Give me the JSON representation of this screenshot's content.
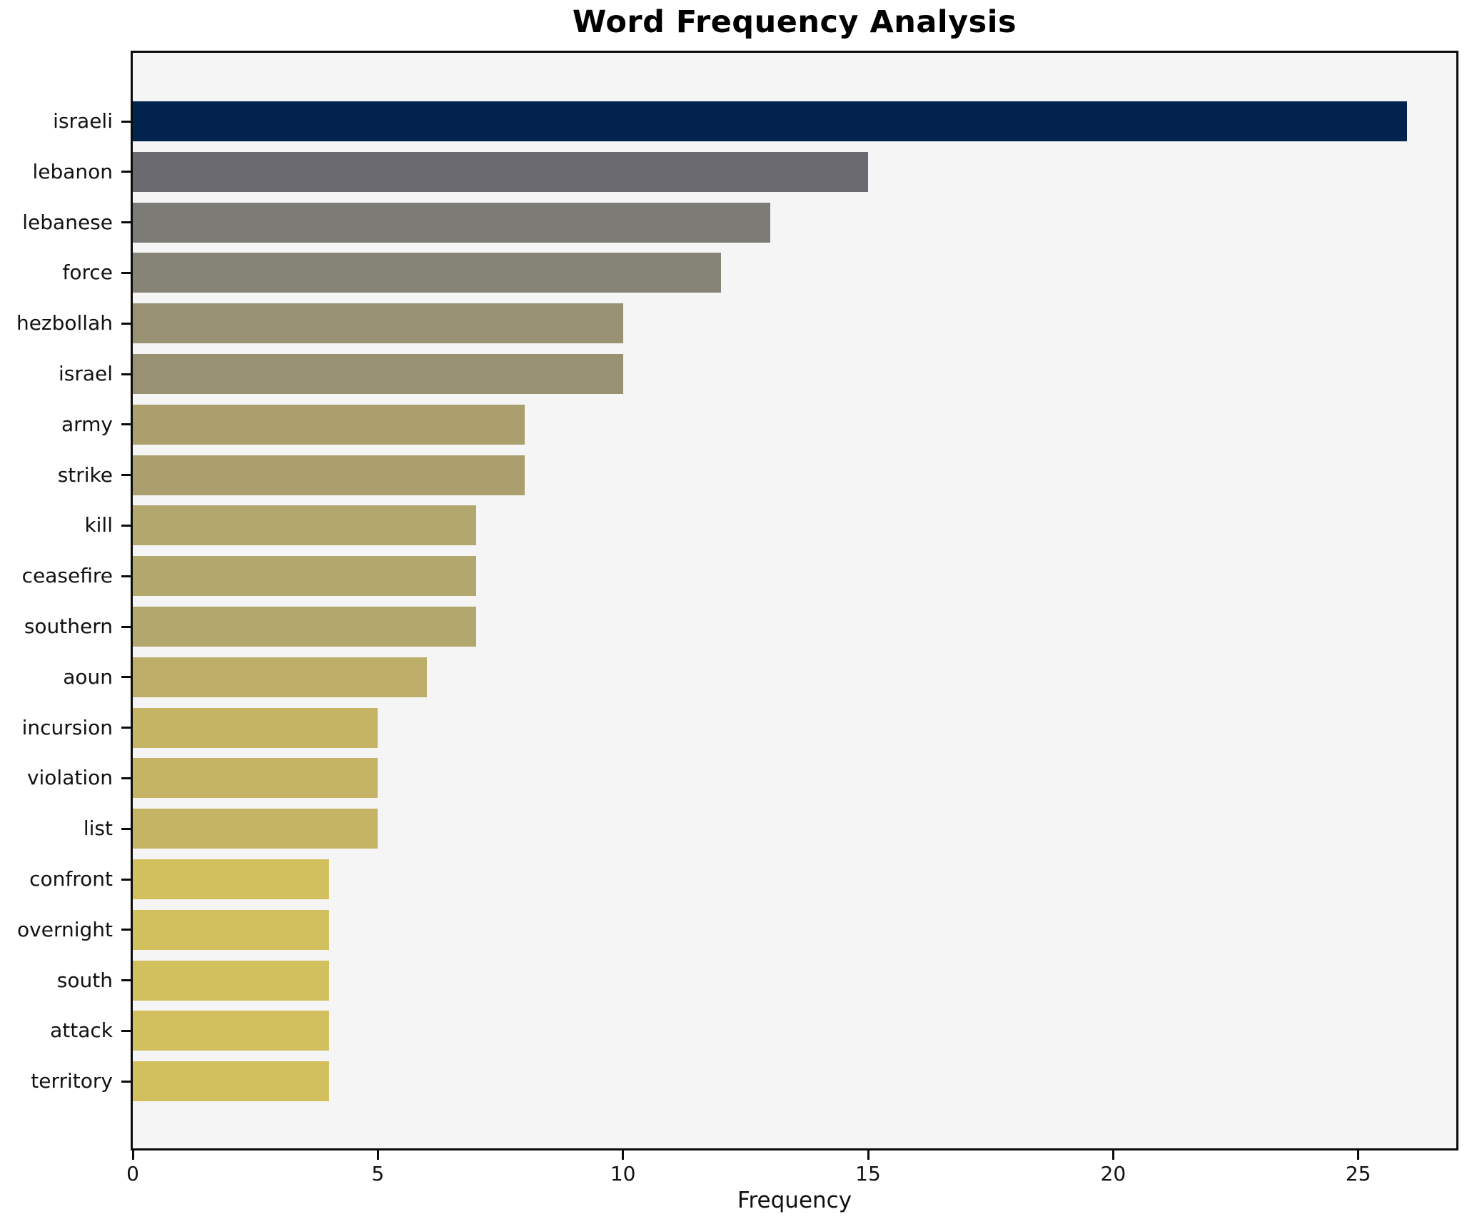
{
  "figure": {
    "background": "#ffffff",
    "plot_background": "#f5f5f6",
    "spine_color": "#0b0b0b",
    "text_color": "#111111"
  },
  "chart_data": {
    "type": "bar",
    "orientation": "horizontal",
    "title": "Word Frequency Analysis",
    "xlabel": "Frequency",
    "ylabel": "",
    "grid": false,
    "legend": null,
    "xlim": [
      0,
      27
    ],
    "xticks": [
      0,
      5,
      10,
      15,
      20,
      25
    ],
    "categories": [
      "israeli",
      "lebanon",
      "lebanese",
      "force",
      "hezbollah",
      "israel",
      "army",
      "strike",
      "kill",
      "ceasefire",
      "southern",
      "aoun",
      "incursion",
      "violation",
      "list",
      "confront",
      "overnight",
      "south",
      "attack",
      "territory"
    ],
    "values": [
      26,
      15,
      13,
      12,
      10,
      10,
      8,
      8,
      7,
      7,
      7,
      6,
      5,
      5,
      5,
      4,
      4,
      4,
      4,
      4
    ],
    "bar_colors": [
      "#02234e",
      "#6b6a70",
      "#7c7b75",
      "#868377",
      "#989272",
      "#989272",
      "#aba06d",
      "#aba06d",
      "#b2a76c",
      "#b2a76c",
      "#b2a76c",
      "#bcae68",
      "#c5b464",
      "#c5b464",
      "#c5b464",
      "#d2bf5e",
      "#d2bf5e",
      "#d2bf5e",
      "#d2bf5e",
      "#d2bf5e"
    ],
    "colormap_note": "cividis-reversed by value: high=dark navy, low=gold"
  }
}
